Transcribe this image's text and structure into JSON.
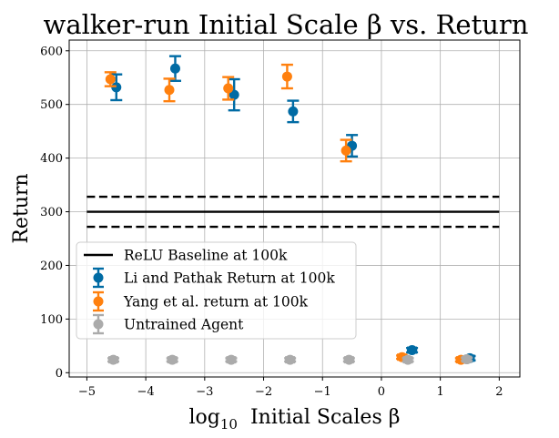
{
  "chart_data": {
    "type": "scatter",
    "title": "walker-run Initial Scale β vs. Return",
    "xlabel_prefix": "log",
    "xlabel_sub": "10",
    "xlabel_main": "  Initial Scales β",
    "ylabel": "Return",
    "xlim": [
      -5.3,
      2.35
    ],
    "ylim": [
      -8,
      620
    ],
    "xticks": [
      -5,
      -4,
      -3,
      -2,
      -1,
      0,
      1,
      2
    ],
    "xtick_labels": [
      "−5",
      "−4",
      "−3",
      "−2",
      "−1",
      "0",
      "1",
      "2"
    ],
    "yticks": [
      0,
      100,
      200,
      300,
      400,
      500,
      600
    ],
    "ytick_labels": [
      "0",
      "100",
      "200",
      "300",
      "400",
      "500",
      "600"
    ],
    "grid": true,
    "legend_position": "lower-left",
    "baseline": {
      "name": "ReLU Baseline at 100k",
      "x_range": [
        -5,
        2
      ],
      "mean": 300,
      "lower": 272,
      "upper": 328,
      "color": "#000000"
    },
    "series": [
      {
        "name": "Li and Pathak Return at 100k",
        "color": "#006ba4",
        "points": [
          {
            "x": -4.5,
            "y": 532,
            "err": 24,
            "xerr": 0
          },
          {
            "x": -3.5,
            "y": 567,
            "err": 23,
            "xerr": 0
          },
          {
            "x": -2.5,
            "y": 518,
            "err": 29,
            "xerr": 0
          },
          {
            "x": -1.5,
            "y": 487,
            "err": 20,
            "xerr": 0
          },
          {
            "x": -0.5,
            "y": 423,
            "err": 20,
            "xerr": 0
          },
          {
            "x": 0.52,
            "y": 42,
            "err": 4,
            "xerr": 0.07
          },
          {
            "x": 1.5,
            "y": 27,
            "err": 4,
            "xerr": 0.07
          }
        ]
      },
      {
        "name": "Yang et al. return at 100k",
        "color": "#ff800e",
        "points": [
          {
            "x": -4.6,
            "y": 547,
            "err": 13,
            "xerr": 0
          },
          {
            "x": -3.6,
            "y": 527,
            "err": 21,
            "xerr": 0
          },
          {
            "x": -2.6,
            "y": 530,
            "err": 21,
            "xerr": 0
          },
          {
            "x": -1.6,
            "y": 552,
            "err": 22,
            "xerr": 0
          },
          {
            "x": -0.6,
            "y": 414,
            "err": 20,
            "xerr": 0
          },
          {
            "x": 0.35,
            "y": 29,
            "err": 3,
            "xerr": 0.07
          },
          {
            "x": 1.35,
            "y": 24,
            "err": 3,
            "xerr": 0.07
          }
        ]
      },
      {
        "name": "Untrained Agent",
        "color": "#ababab",
        "points": [
          {
            "x": -4.55,
            "y": 24,
            "err": 3,
            "xerr": 0.07
          },
          {
            "x": -3.55,
            "y": 24,
            "err": 3,
            "xerr": 0.07
          },
          {
            "x": -2.55,
            "y": 24,
            "err": 3,
            "xerr": 0.07
          },
          {
            "x": -1.55,
            "y": 24,
            "err": 3,
            "xerr": 0.07
          },
          {
            "x": -0.55,
            "y": 24,
            "err": 3,
            "xerr": 0.07
          },
          {
            "x": 0.45,
            "y": 24,
            "err": 3,
            "xerr": 0.07
          },
          {
            "x": 1.45,
            "y": 25,
            "err": 3,
            "xerr": 0.07
          }
        ]
      }
    ]
  }
}
